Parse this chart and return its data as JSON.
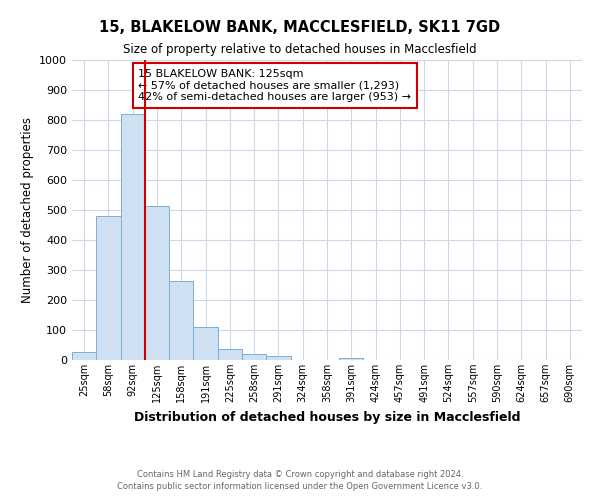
{
  "title1": "15, BLAKELOW BANK, MACCLESFIELD, SK11 7GD",
  "title2": "Size of property relative to detached houses in Macclesfield",
  "xlabel": "Distribution of detached houses by size in Macclesfield",
  "ylabel": "Number of detached properties",
  "footnote1": "Contains HM Land Registry data © Crown copyright and database right 2024.",
  "footnote2": "Contains public sector information licensed under the Open Government Licence v3.0.",
  "annotation_line1": "15 BLAKELOW BANK: 125sqm",
  "annotation_line2": "← 57% of detached houses are smaller (1,293)",
  "annotation_line3": "42% of semi-detached houses are larger (953) →",
  "bar_labels": [
    "25sqm",
    "58sqm",
    "92sqm",
    "125sqm",
    "158sqm",
    "191sqm",
    "225sqm",
    "258sqm",
    "291sqm",
    "324sqm",
    "358sqm",
    "391sqm",
    "424sqm",
    "457sqm",
    "491sqm",
    "524sqm",
    "557sqm",
    "590sqm",
    "624sqm",
    "657sqm",
    "690sqm"
  ],
  "bar_values": [
    28,
    480,
    820,
    515,
    265,
    110,
    37,
    20,
    12,
    0,
    0,
    8,
    0,
    0,
    0,
    0,
    0,
    0,
    0,
    0,
    0
  ],
  "bar_color": "#cfe0f3",
  "bar_edge_color": "#7bafd4",
  "red_line_x": 3,
  "red_line_color": "#cc0000",
  "annotation_box_edge_color": "#cc0000",
  "ylim": [
    0,
    1000
  ],
  "yticks": [
    0,
    100,
    200,
    300,
    400,
    500,
    600,
    700,
    800,
    900,
    1000
  ],
  "background_color": "#ffffff",
  "grid_color": "#ccd8eb"
}
